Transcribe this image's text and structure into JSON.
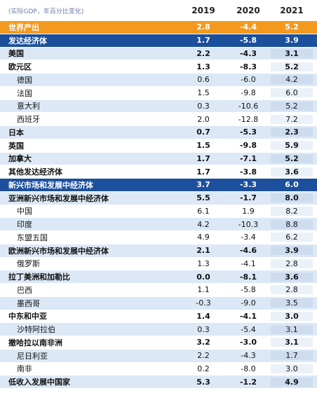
{
  "table": {
    "note": "(实际GDP，年百分比变化)",
    "columns": [
      "2019",
      "2020",
      "2021"
    ],
    "rows": [
      [
        "世界产出",
        "2.8",
        "-4.4",
        "5.2"
      ],
      [
        "发达经济体",
        "1.7",
        "-5.8",
        "3.9"
      ],
      [
        "美国",
        "2.2",
        "-4.3",
        "3.1"
      ],
      [
        "欧元区",
        "1.3",
        "-8.3",
        "5.2"
      ],
      [
        "德国",
        "0.6",
        "-6.0",
        "4.2"
      ],
      [
        "法国",
        "1.5",
        "-9.8",
        "6.0"
      ],
      [
        "意大利",
        "0.3",
        "-10.6",
        "5.2"
      ],
      [
        "西班牙",
        "2.0",
        "-12.8",
        "7.2"
      ],
      [
        "日本",
        "0.7",
        "-5.3",
        "2.3"
      ],
      [
        "英国",
        "1.5",
        "-9.8",
        "5.9"
      ],
      [
        "加拿大",
        "1.7",
        "-7.1",
        "5.2"
      ],
      [
        "其他发达经济体",
        "1.7",
        "-3.8",
        "3.6"
      ],
      [
        "新兴市场和发展中经济体",
        "3.7",
        "-3.3",
        "6.0"
      ],
      [
        "亚洲新兴市场和发展中经济体",
        "5.5",
        "-1.7",
        "8.0"
      ],
      [
        "中国",
        "6.1",
        "1.9",
        "8.2"
      ],
      [
        "印度",
        "4.2",
        "-10.3",
        "8.8"
      ],
      [
        "东盟五国",
        "4.9",
        "-3.4",
        "6.2"
      ],
      [
        "欧洲新兴市场和发展中经济体",
        "2.1",
        "-4.6",
        "3.9"
      ],
      [
        "俄罗斯",
        "1.3",
        "-4.1",
        "2.8"
      ],
      [
        "拉丁美洲和加勒比",
        "0.0",
        "-8.1",
        "3.6"
      ],
      [
        "巴西",
        "1.1",
        "-5.8",
        "2.8"
      ],
      [
        "墨西哥",
        "-0.3",
        "-9.0",
        "3.5"
      ],
      [
        "中东和中亚",
        "1.4",
        "-4.1",
        "3.0"
      ],
      [
        "沙特阿拉伯",
        "0.3",
        "-5.4",
        "3.1"
      ],
      [
        "撤哈拉以南非洲",
        "3.2",
        "-3.0",
        "3.1"
      ],
      [
        "尼日利亚",
        "2.2",
        "-4.3",
        "1.7"
      ],
      [
        "南非",
        "0.2",
        "-8.0",
        "3.0"
      ],
      [
        "低收入发展中国家",
        "5.3",
        "-1.2",
        "4.9"
      ]
    ]
  }
}
